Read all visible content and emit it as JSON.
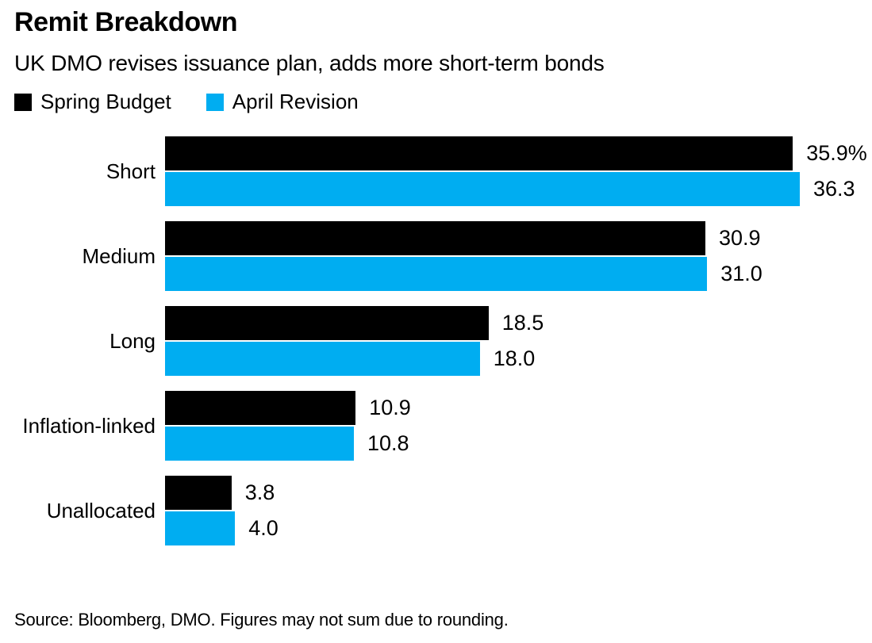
{
  "chart_data": {
    "type": "bar",
    "orientation": "horizontal",
    "title": "Remit Breakdown",
    "subtitle": "UK DMO revises issuance plan, adds more short-term bonds",
    "categories": [
      "Short",
      "Medium",
      "Long",
      "Inflation-linked",
      "Unallocated"
    ],
    "series": [
      {
        "name": "Spring Budget",
        "key": "spring-budget",
        "color": "#000000",
        "values": [
          35.9,
          30.9,
          18.5,
          10.9,
          3.8
        ],
        "labels": [
          "35.9%",
          "30.9",
          "18.5",
          "10.9",
          "3.8"
        ]
      },
      {
        "name": "April Revision",
        "key": "april-revision",
        "color": "#00adf1",
        "values": [
          36.3,
          31.0,
          18.0,
          10.8,
          4.0
        ],
        "labels": [
          "36.3",
          "31.0",
          "18.0",
          "10.8",
          "4.0"
        ]
      }
    ],
    "axis_max": 36.3,
    "unit": "%",
    "grid": false,
    "legend_position": "top",
    "value_labels_shown": true
  },
  "footer": {
    "source": "Source: Bloomberg, DMO. Figures may not sum due to rounding."
  }
}
